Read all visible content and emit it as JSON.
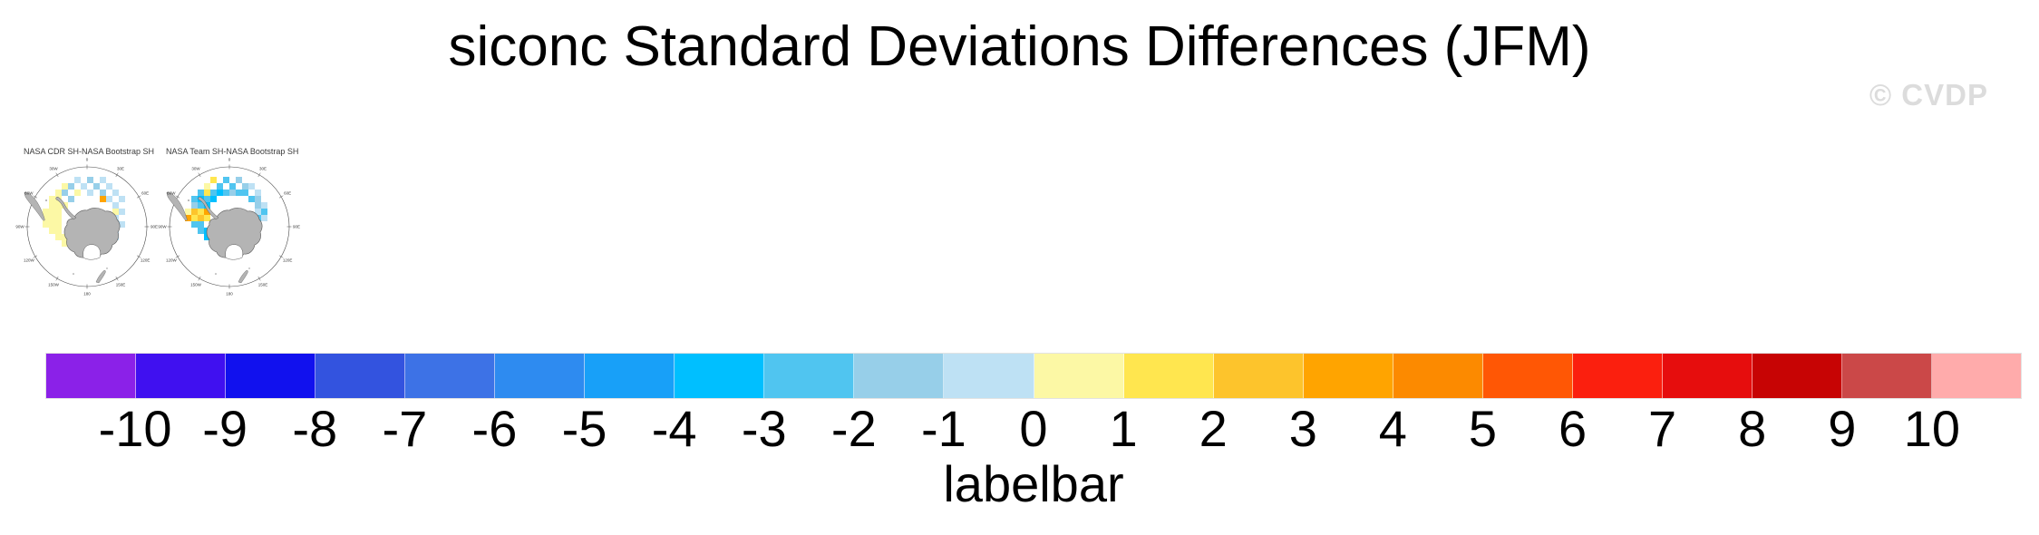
{
  "page": {
    "title": "siconc Standard Deviations Differences (JFM)",
    "watermark": "© CVDP"
  },
  "maps": [
    {
      "title": "NASA CDR SH-NASA Bootstrap SH",
      "cells": [
        [
          8,
          3,
          "b"
        ],
        [
          10,
          3,
          "B"
        ],
        [
          12,
          3,
          "b"
        ],
        [
          6,
          4,
          "y"
        ],
        [
          7,
          4,
          "B"
        ],
        [
          9,
          4,
          "b"
        ],
        [
          11,
          4,
          "B"
        ],
        [
          13,
          4,
          "b"
        ],
        [
          5,
          5,
          "y"
        ],
        [
          6,
          5,
          "B"
        ],
        [
          8,
          5,
          "y"
        ],
        [
          10,
          5,
          "b"
        ],
        [
          12,
          5,
          "B"
        ],
        [
          14,
          5,
          "b"
        ],
        [
          4,
          6,
          "y"
        ],
        [
          5,
          6,
          "y"
        ],
        [
          7,
          6,
          "B"
        ],
        [
          12,
          6,
          "o"
        ],
        [
          13,
          6,
          "b"
        ],
        [
          15,
          6,
          "b"
        ],
        [
          4,
          7,
          "y"
        ],
        [
          5,
          7,
          "y"
        ],
        [
          6,
          7,
          "y"
        ],
        [
          14,
          7,
          "b"
        ],
        [
          3,
          8,
          "y"
        ],
        [
          4,
          8,
          "y"
        ],
        [
          5,
          8,
          "y"
        ],
        [
          14,
          8,
          "y"
        ],
        [
          15,
          8,
          "b"
        ],
        [
          3,
          9,
          "y"
        ],
        [
          4,
          9,
          "y"
        ],
        [
          5,
          9,
          "y"
        ],
        [
          14,
          9,
          "b"
        ],
        [
          3,
          10,
          "y"
        ],
        [
          4,
          10,
          "y"
        ],
        [
          5,
          10,
          "y"
        ],
        [
          14,
          10,
          "b"
        ],
        [
          15,
          10,
          "b"
        ],
        [
          4,
          11,
          "y"
        ],
        [
          5,
          11,
          "y"
        ],
        [
          14,
          11,
          "b"
        ],
        [
          5,
          12,
          "y"
        ],
        [
          6,
          12,
          "y"
        ],
        [
          13,
          12,
          "r"
        ],
        [
          14,
          12,
          "b"
        ],
        [
          6,
          13,
          "y"
        ],
        [
          7,
          13,
          "y"
        ],
        [
          8,
          13,
          "b"
        ],
        [
          9,
          13,
          "y"
        ],
        [
          10,
          13,
          "b"
        ],
        [
          11,
          13,
          "y"
        ],
        [
          12,
          13,
          "b"
        ],
        [
          8,
          14,
          "y"
        ],
        [
          9,
          14,
          "b"
        ],
        [
          10,
          14,
          "y"
        ],
        [
          11,
          14,
          "b"
        ]
      ]
    },
    {
      "title": "NASA Team SH-NASA Bootstrap SH",
      "cells": [
        [
          7,
          3,
          "Y"
        ],
        [
          9,
          3,
          "c"
        ],
        [
          11,
          3,
          "B"
        ],
        [
          6,
          4,
          "y"
        ],
        [
          8,
          4,
          "c"
        ],
        [
          10,
          4,
          "c"
        ],
        [
          12,
          4,
          "B"
        ],
        [
          13,
          4,
          "b"
        ],
        [
          5,
          5,
          "c"
        ],
        [
          6,
          5,
          "Y"
        ],
        [
          7,
          5,
          "c"
        ],
        [
          8,
          5,
          "C"
        ],
        [
          9,
          5,
          "c"
        ],
        [
          10,
          5,
          "B"
        ],
        [
          11,
          5,
          "c"
        ],
        [
          12,
          5,
          "c"
        ],
        [
          14,
          5,
          "b"
        ],
        [
          4,
          6,
          "c"
        ],
        [
          5,
          6,
          "C"
        ],
        [
          6,
          6,
          "c"
        ],
        [
          7,
          6,
          "C"
        ],
        [
          13,
          6,
          "c"
        ],
        [
          14,
          6,
          "B"
        ],
        [
          4,
          7,
          "B"
        ],
        [
          5,
          7,
          "c"
        ],
        [
          6,
          7,
          "C"
        ],
        [
          14,
          7,
          "B"
        ],
        [
          15,
          7,
          "b"
        ],
        [
          3,
          8,
          "y"
        ],
        [
          4,
          8,
          "g"
        ],
        [
          5,
          8,
          "Y"
        ],
        [
          6,
          8,
          "o"
        ],
        [
          14,
          8,
          "b"
        ],
        [
          15,
          8,
          "c"
        ],
        [
          3,
          9,
          "o"
        ],
        [
          4,
          9,
          "Y"
        ],
        [
          5,
          9,
          "g"
        ],
        [
          6,
          9,
          "Y"
        ],
        [
          14,
          9,
          "c"
        ],
        [
          15,
          9,
          "b"
        ],
        [
          4,
          10,
          "c"
        ],
        [
          5,
          10,
          "c"
        ],
        [
          14,
          10,
          "b"
        ],
        [
          5,
          11,
          "c"
        ],
        [
          6,
          11,
          "C"
        ],
        [
          13,
          11,
          "B"
        ],
        [
          6,
          12,
          "C"
        ],
        [
          7,
          12,
          "C"
        ],
        [
          8,
          12,
          "C"
        ],
        [
          9,
          12,
          "c"
        ],
        [
          10,
          12,
          "c"
        ],
        [
          11,
          12,
          "B"
        ],
        [
          12,
          12,
          "c"
        ],
        [
          13,
          12,
          "b"
        ],
        [
          7,
          13,
          "C"
        ],
        [
          8,
          13,
          "C"
        ],
        [
          9,
          13,
          "c"
        ],
        [
          10,
          13,
          "c"
        ],
        [
          11,
          13,
          "b"
        ],
        [
          13,
          13,
          "Y"
        ],
        [
          9,
          14,
          "c"
        ],
        [
          10,
          14,
          "b"
        ]
      ]
    }
  ],
  "map_labels": [
    "0",
    "30E",
    "60E",
    "90E",
    "120E",
    "150E",
    "180",
    "150W",
    "120W",
    "90W",
    "60W",
    "30W"
  ],
  "cell_colors": {
    "y": "#FCF8A5",
    "Y": "#FFE64F",
    "g": "#FDC42C",
    "o": "#FFA400",
    "O": "#FF5705",
    "r": "#FB1F0E",
    "b": "#BEE1F4",
    "B": "#97CFE9",
    "c": "#50C5F0",
    "C": "#00BFFF"
  },
  "colorbar": {
    "caption": "labelbar",
    "colors": [
      "#8B21E8",
      "#4010F0",
      "#1111EE",
      "#3353DF",
      "#3D72E6",
      "#2E8BF0",
      "#18A0F8",
      "#00BFFF",
      "#50C5F0",
      "#97CFE9",
      "#BEE1F4",
      "#FCF8A5",
      "#FFE64F",
      "#FDC42C",
      "#FFA400",
      "#FC8A00",
      "#FF5705",
      "#FB1F0E",
      "#E60D0D",
      "#C70404",
      "#CB4848",
      "#FFABAB"
    ],
    "tick_labels": [
      "-10",
      "-9",
      "-8",
      "-7",
      "-6",
      "-5",
      "-4",
      "-3",
      "-2",
      "-1",
      "0",
      "1",
      "2",
      "3",
      "4",
      "5",
      "6",
      "7",
      "8",
      "9",
      "10"
    ]
  },
  "chart_data": {
    "type": "heatmap",
    "title": "siconc Standard Deviations Differences (JFM)",
    "panels": [
      "NASA CDR SH-NASA Bootstrap SH",
      "NASA Team SH-NASA Bootstrap SH"
    ],
    "region": "Southern Hemisphere (Antarctica polar view)",
    "colorbar_caption": "labelbar",
    "levels": [
      -10,
      -9,
      -8,
      -7,
      -6,
      -5,
      -4,
      -3,
      -2,
      -1,
      0,
      1,
      2,
      3,
      4,
      5,
      6,
      7,
      8,
      9,
      10
    ],
    "colors": [
      "#8B21E8",
      "#4010F0",
      "#1111EE",
      "#3353DF",
      "#3D72E6",
      "#2E8BF0",
      "#18A0F8",
      "#00BFFF",
      "#50C5F0",
      "#97CFE9",
      "#BEE1F4",
      "#FCF8A5",
      "#FFE64F",
      "#FDC42C",
      "#FFA400",
      "#FC8A00",
      "#FF5705",
      "#FB1F0E",
      "#E60D0D",
      "#C70404",
      "#CB4848",
      "#FFABAB"
    ],
    "legend_position": "bottom"
  }
}
